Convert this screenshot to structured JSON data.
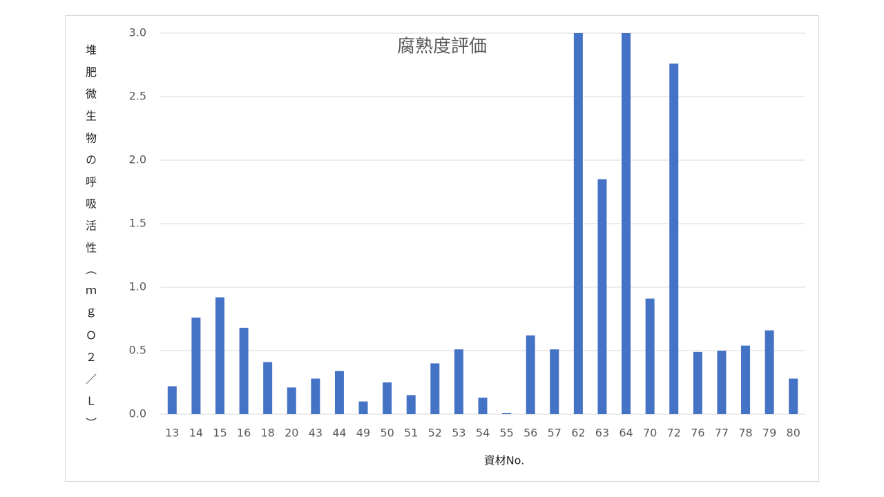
{
  "chart_data": {
    "type": "bar",
    "title": "腐熟度評価",
    "x_label": "資材No.",
    "y_label": "堆肥微生物の呼吸活性（ｍｇＯ２／Ｌ）",
    "categories": [
      "13",
      "14",
      "15",
      "16",
      "18",
      "20",
      "43",
      "44",
      "49",
      "50",
      "51",
      "52",
      "53",
      "54",
      "55",
      "56",
      "57",
      "62",
      "63",
      "64",
      "70",
      "72",
      "76",
      "77",
      "78",
      "79",
      "80"
    ],
    "values": [
      0.22,
      0.76,
      0.92,
      0.68,
      0.41,
      0.21,
      0.28,
      0.34,
      0.1,
      0.25,
      0.15,
      0.4,
      0.51,
      0.13,
      0.01,
      0.62,
      0.51,
      3.0,
      1.85,
      3.0,
      0.91,
      2.76,
      0.49,
      0.5,
      0.54,
      0.66,
      0.28
    ],
    "color": "#4472c4",
    "ylim": [
      0,
      3
    ],
    "yticks": [
      {
        "value": 0,
        "label": "0.0"
      },
      {
        "value": 0.5,
        "label": "0.5"
      },
      {
        "value": 1,
        "label": "1.0"
      },
      {
        "value": 1.5,
        "label": "1.5"
      },
      {
        "value": 2,
        "label": "2.0"
      },
      {
        "value": 2.5,
        "label": "2.5"
      },
      {
        "value": 3,
        "label": "3.0"
      }
    ],
    "grid": true
  }
}
